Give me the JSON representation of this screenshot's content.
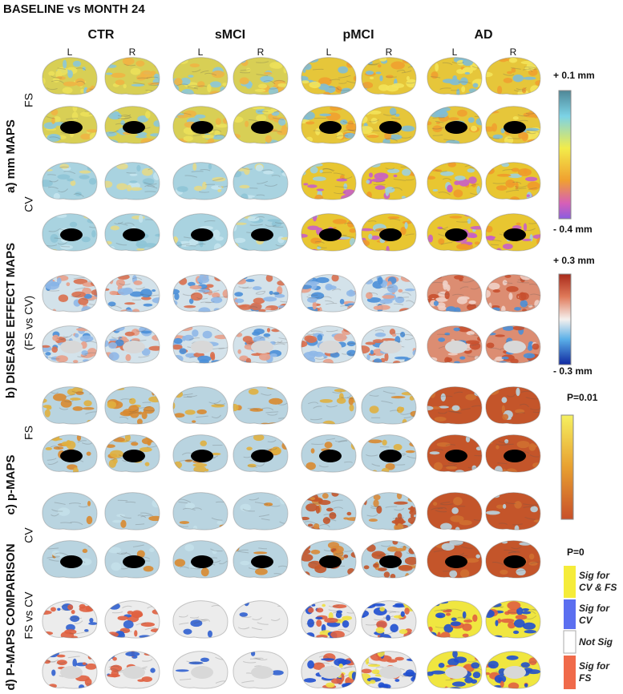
{
  "title": "BASELINE vs MONTH 24",
  "columns": [
    "CTR",
    "sMCI",
    "pMCI",
    "AD"
  ],
  "hemispheres": [
    "L",
    "R"
  ],
  "sections": [
    {
      "label": "a) mm MAPS",
      "sublabels": [
        "FS",
        "CV"
      ]
    },
    {
      "label": "b) DISEASE EFFECT  MAPS",
      "sublabels": [
        "(FS  vs  CV)"
      ]
    },
    {
      "label": "c) p-MAPS",
      "sublabels": [
        "FS",
        "CV"
      ]
    },
    {
      "label": "d) P-MAPS COMPARISON",
      "sublabels": [
        "FS  vs  CV"
      ]
    }
  ],
  "colorbars": [
    {
      "max": "+ 0.1 mm",
      "min": "- 0.4 mm"
    },
    {
      "max": "+ 0.3 mm",
      "min": "- 0.3 mm"
    },
    {
      "max": "P=0.01",
      "min": "P=0"
    }
  ],
  "legend": [
    "Sig for CV & FS",
    "Sig for CV",
    "Not Sig",
    "Sig for FS"
  ]
}
